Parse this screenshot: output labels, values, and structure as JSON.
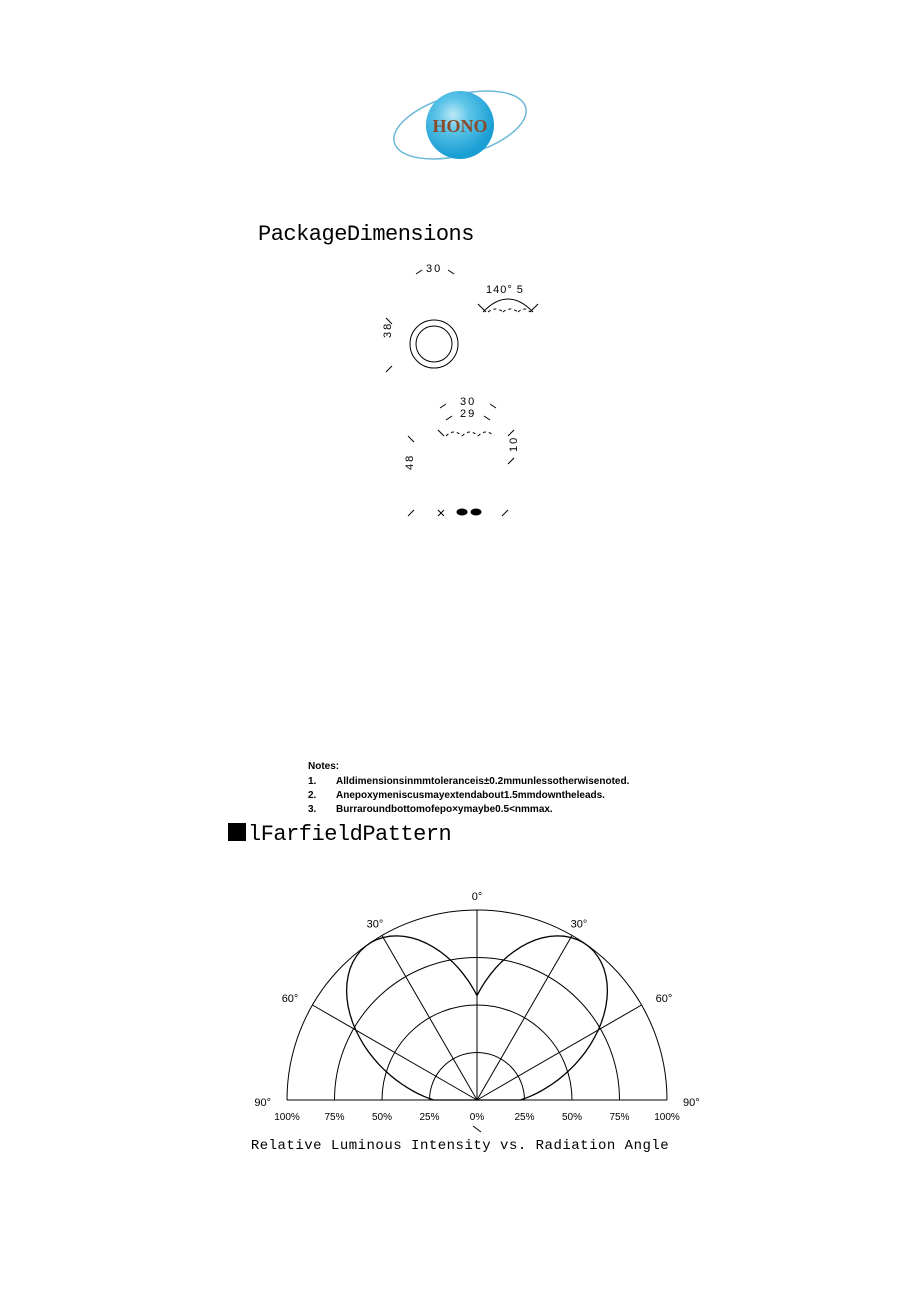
{
  "logo": {
    "text": "HONO",
    "sphere_color_center": "#5cc4e8",
    "sphere_color_edge": "#1a9fd4",
    "text_color": "#8b4a2a",
    "ring_color": "#6ab8d8"
  },
  "section1": {
    "title": "PackageDimensions",
    "dimensions": {
      "top_width": "30",
      "angle_spec": "140° 5",
      "circle_height": "38",
      "body_width": "30",
      "inner_width": "29",
      "body_height": "48",
      "flange": "10"
    }
  },
  "notes": {
    "heading": "Notes:",
    "items": [
      "Alldimensionsinmmtoleranceis±0.2mmunlessotherwisenoted.",
      "Anepoxymeniscusmayextendabout1.5mmdowntheleads.",
      "Burraroundbottomofepo×ymaybe0.5<nmmax."
    ]
  },
  "section2": {
    "title": "lFarfieldPattern",
    "caption": "Relative Luminous Intensity vs. Radiation Angle",
    "angle_labels": [
      "90°",
      "60°",
      "30°",
      "0°",
      "30°",
      "60°",
      "90°"
    ],
    "pct_labels": [
      "100%",
      "75%",
      "50%",
      "25%",
      "0%",
      "25%",
      "50%",
      "75%",
      "100%"
    ],
    "ring_pcts": [
      25,
      50,
      75,
      100
    ],
    "radial_angles_deg": [
      -90,
      -60,
      -30,
      0,
      30,
      60,
      90
    ],
    "lobe_half_angle_deg": 70,
    "line_color": "#000000",
    "grid_stroke": 1,
    "lobe_stroke": 1.3
  }
}
